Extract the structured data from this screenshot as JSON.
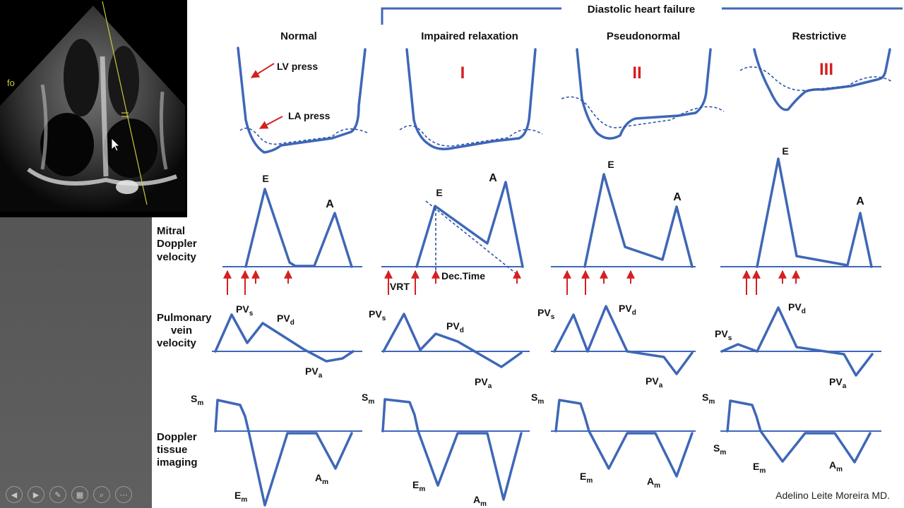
{
  "colors": {
    "trace": "#3f67b7",
    "grade": "#d42020",
    "arrow": "#d42020"
  },
  "bracket_title": "Diastolic heart failure",
  "columns": [
    {
      "title": "Normal",
      "grade": ""
    },
    {
      "title": "Impaired relaxation",
      "grade": "I"
    },
    {
      "title": "Pseudonormal",
      "grade": "II"
    },
    {
      "title": "Restrictive",
      "grade": "III"
    }
  ],
  "annotations": {
    "lv_press": "LV press",
    "la_press": "LA press",
    "ivrt": "IVRT",
    "dec_time": "Dec.Time"
  },
  "rows": {
    "mitral": {
      "line1": "Mitral",
      "line2": "Doppler",
      "line3": "velocity",
      "e": "E",
      "a": "A"
    },
    "pulmonary": {
      "line1": "Pulmonary",
      "line2": "vein",
      "line3": "velocity",
      "s_base": "PV",
      "s_sub": "s",
      "d_base": "PV",
      "d_sub": "d",
      "a_base": "PV",
      "a_sub": "a"
    },
    "tissue": {
      "line1": "Doppler",
      "line2": "tissue",
      "line3": "imaging",
      "s_base": "S",
      "s_sub": "m",
      "e_base": "E",
      "e_sub": "m",
      "a_base": "A",
      "a_sub": "m"
    }
  },
  "credit": "Adelino Leite Moreira MD.",
  "echo_label": "fo",
  "toolbar": [
    {
      "icon": "previous-icon",
      "glyph": "◀"
    },
    {
      "icon": "next-icon",
      "glyph": "▶"
    },
    {
      "icon": "pen-icon",
      "glyph": "✎"
    },
    {
      "icon": "slides-grid-icon",
      "glyph": "▦"
    },
    {
      "icon": "zoom-icon",
      "glyph": "⌕"
    },
    {
      "icon": "more-icon",
      "glyph": "⋯"
    }
  ]
}
